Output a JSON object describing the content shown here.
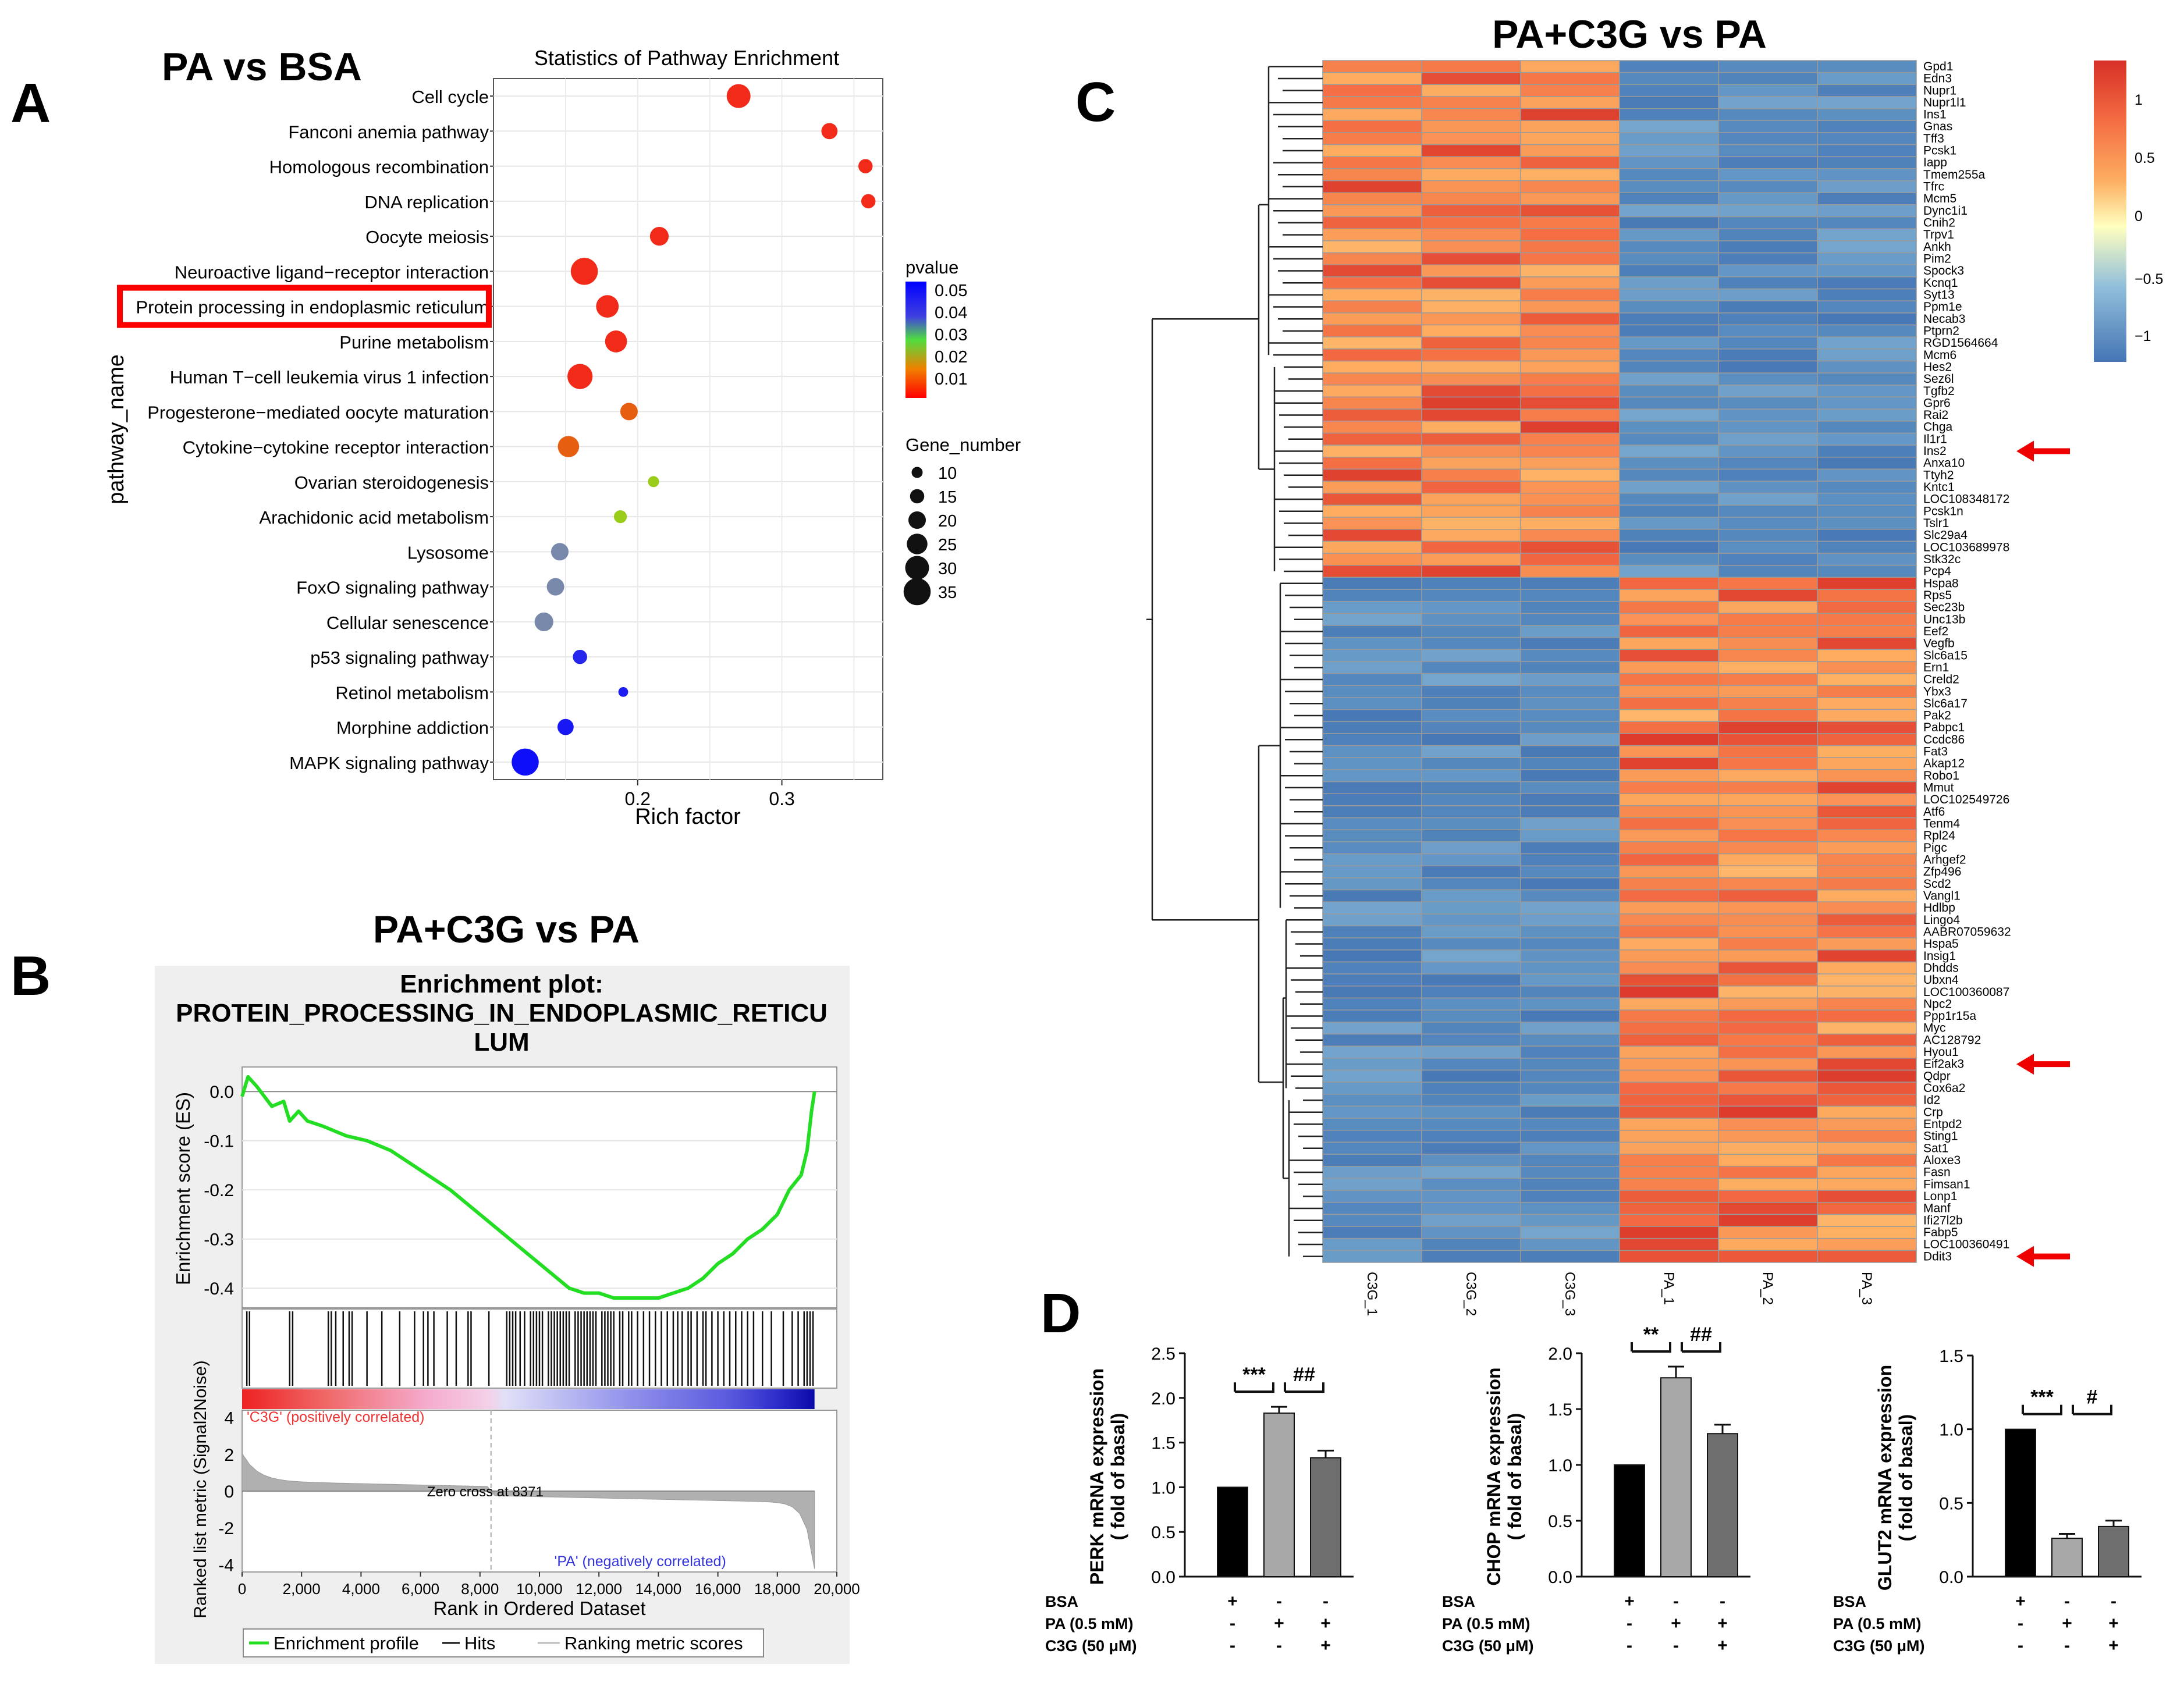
{
  "panels": {
    "A": {
      "letter": "A",
      "heading": "PA vs BSA",
      "chart_data": {
        "type": "scatter",
        "title": "Statistics of Pathway Enrichment",
        "xlabel": "Rich factor",
        "ylabel": "pathway_name",
        "xticks": [
          0.2,
          0.3
        ],
        "xlim": [
          0.1,
          0.37
        ],
        "highlight": "Protein processing in endoplasmic reticulum",
        "legend_color_title": "pvalue",
        "legend_color_ticks": [
          "0.05",
          "0.04",
          "0.03",
          "0.02",
          "0.01"
        ],
        "legend_size_title": "Gene_number",
        "legend_size_ticks": [
          10,
          15,
          20,
          25,
          30,
          35
        ],
        "points": [
          {
            "name": "Cell cycle",
            "rich": 0.27,
            "genes": 30,
            "p": 0.001
          },
          {
            "name": "Fanconi anemia pathway",
            "rich": 0.333,
            "genes": 18,
            "p": 0.001
          },
          {
            "name": "Homologous recombination",
            "rich": 0.358,
            "genes": 15,
            "p": 0.001
          },
          {
            "name": "DNA replication",
            "rich": 0.36,
            "genes": 15,
            "p": 0.001
          },
          {
            "name": "Oocyte meiosis",
            "rich": 0.215,
            "genes": 22,
            "p": 0.002
          },
          {
            "name": "Neuroactive ligand−receptor interaction",
            "rich": 0.163,
            "genes": 35,
            "p": 0.003
          },
          {
            "name": "Protein processing in endoplasmic reticulum",
            "rich": 0.179,
            "genes": 28,
            "p": 0.004
          },
          {
            "name": "Purine metabolism",
            "rich": 0.185,
            "genes": 27,
            "p": 0.004
          },
          {
            "name": "Human T−cell leukemia virus 1 infection",
            "rich": 0.16,
            "genes": 32,
            "p": 0.005
          },
          {
            "name": "Progesterone−mediated oocyte maturation",
            "rich": 0.194,
            "genes": 20,
            "p": 0.008
          },
          {
            "name": "Cytokine−cytokine receptor interaction",
            "rich": 0.152,
            "genes": 26,
            "p": 0.012
          },
          {
            "name": "Ovarian steroidogenesis",
            "rich": 0.211,
            "genes": 10,
            "p": 0.022
          },
          {
            "name": "Arachidonic acid metabolism",
            "rich": 0.188,
            "genes": 13,
            "p": 0.025
          },
          {
            "name": "Lysosome",
            "rich": 0.146,
            "genes": 20,
            "p": 0.035
          },
          {
            "name": "FoxO signaling pathway",
            "rich": 0.143,
            "genes": 20,
            "p": 0.035
          },
          {
            "name": "Cellular senescence",
            "rich": 0.135,
            "genes": 22,
            "p": 0.036
          },
          {
            "name": "p53 signaling pathway",
            "rich": 0.16,
            "genes": 15,
            "p": 0.042
          },
          {
            "name": "Retinol metabolism",
            "rich": 0.19,
            "genes": 8,
            "p": 0.044
          },
          {
            "name": "Morphine addiction",
            "rich": 0.15,
            "genes": 18,
            "p": 0.045
          },
          {
            "name": "MAPK signaling pathway",
            "rich": 0.122,
            "genes": 35,
            "p": 0.047
          }
        ]
      }
    },
    "B": {
      "letter": "B",
      "heading": "PA+C3G vs PA",
      "chart_data": {
        "type": "line",
        "title_line1": "Enrichment plot:",
        "title_line2": "PROTEIN_PROCESSING_IN_ENDOPLASMIC_RETICU",
        "title_line3": "LUM",
        "ylabel_top": "Enrichment score (ES)",
        "ylabel_bottom": "Ranked list metric (Signal2Noise)",
        "xlabel": "Rank in Ordered Dataset",
        "yticks_top": [
          "0.0",
          "-0.1",
          "-0.2",
          "-0.3",
          "-0.4"
        ],
        "ylim_top": [
          -0.44,
          0.05
        ],
        "yticks_bottom": [
          "4",
          "2",
          "0",
          "-2",
          "-4"
        ],
        "xticks": [
          "0",
          "2,000",
          "4,000",
          "6,000",
          "8,000",
          "10,000",
          "12,000",
          "14,000",
          "16,000",
          "18,000",
          "20,000"
        ],
        "xlim": [
          0,
          20000
        ],
        "es_x": [
          0,
          200,
          500,
          1000,
          1400,
          1600,
          1900,
          2200,
          2700,
          3500,
          4200,
          5000,
          6000,
          7000,
          8000,
          9000,
          10000,
          11000,
          11500,
          12000,
          12500,
          13000,
          13500,
          14000,
          14500,
          15000,
          15500,
          16000,
          16500,
          17000,
          17500,
          18000,
          18400,
          18800,
          19000,
          19150,
          19250
        ],
        "es_y": [
          -0.01,
          0.03,
          0.01,
          -0.03,
          -0.02,
          -0.06,
          -0.04,
          -0.06,
          -0.07,
          -0.09,
          -0.1,
          -0.12,
          -0.16,
          -0.2,
          -0.25,
          -0.3,
          -0.35,
          -0.4,
          -0.41,
          -0.41,
          -0.42,
          -0.42,
          -0.42,
          -0.42,
          -0.41,
          -0.4,
          -0.38,
          -0.35,
          -0.33,
          -0.3,
          -0.28,
          -0.25,
          -0.2,
          -0.17,
          -0.12,
          -0.04,
          0.0
        ],
        "zero_cross_label": "Zero cross at 8371",
        "zero_cross": 8371,
        "pos_label": "'C3G' (positively correlated)",
        "neg_label": "'PA' (negatively correlated)",
        "legend": [
          "Enrichment profile",
          "Hits",
          "Ranking metric scores"
        ],
        "hits": [
          160,
          250,
          1600,
          1700,
          2900,
          3000,
          3150,
          3400,
          3600,
          3700,
          4200,
          4700,
          5300,
          5800,
          6100,
          6250,
          6450,
          6900,
          7200,
          7600,
          7700,
          8300,
          8900,
          9000,
          9100,
          9200,
          9350,
          9500,
          9700,
          9800,
          9900,
          10000,
          10100,
          10300,
          10400,
          10500,
          10600,
          10700,
          10800,
          10900,
          11000,
          11200,
          11300,
          11400,
          11500,
          11600,
          11700,
          11800,
          11900,
          12100,
          12200,
          12300,
          12400,
          12500,
          12700,
          12800,
          13000,
          13100,
          13300,
          13500,
          13700,
          13900,
          14100,
          14300,
          14500,
          14650,
          14800,
          15000,
          15100,
          15300,
          15500,
          15600,
          15800,
          16000,
          16200,
          16400,
          16600,
          16800,
          17000,
          17200,
          17500,
          17800,
          18200,
          18500,
          18700,
          18900,
          19000,
          19100,
          19200
        ]
      }
    },
    "C": {
      "letter": "C",
      "heading": "PA+C3G vs PA",
      "chart_data": {
        "type": "heatmap",
        "columns": [
          "C3G_1",
          "C3G_2",
          "C3G_3",
          "PA_1",
          "PA_2",
          "PA_3"
        ],
        "legend_ticks": [
          "1",
          "0.5",
          "0",
          "−0.5",
          "−1"
        ],
        "arrow_genes": [
          "Ins2",
          "Eif2ak3",
          "Ddit3"
        ],
        "genes_up": [
          "Gpd1",
          "Edn3",
          "Nupr1",
          "Nupr1l1",
          "Ins1",
          "Gnas",
          "Tff3",
          "Pcsk1",
          "Iapp",
          "Tmem255a",
          "Tfrc",
          "Mcm5",
          "Dync1i1",
          "Cnih2",
          "Trpv1",
          "Ankh",
          "Pim2",
          "Spock3",
          "Kcnq1",
          "Syt13",
          "Ppm1e",
          "Necab3",
          "Ptprn2",
          "RGD1564664",
          "Mcm6",
          "Hes2",
          "Sez6l",
          "Tgfb2",
          "Gpr6",
          "Rai2",
          "Chga",
          "Il1r1",
          "Ins2",
          "Anxa10",
          "Ttyh2",
          "Kntc1",
          "LOC108348172",
          "Pcsk1n",
          "Tslr1",
          "Slc29a4",
          "LOC103689978",
          "Stk32c",
          "Pcp4"
        ],
        "genes_down": [
          "Hspa8",
          "Rps5",
          "Sec23b",
          "Unc13b",
          "Eef2",
          "Vegfb",
          "Slc6a15",
          "Ern1",
          "Creld2",
          "Ybx3",
          "Slc6a17",
          "Pak2",
          "Pabpc1",
          "Ccdc86",
          "Fat3",
          "Akap12",
          "Robo1",
          "Mmut",
          "LOC102549726",
          "Atf6",
          "Tenm4",
          "Rpl24",
          "Pigc",
          "Arhgef2",
          "Zfp496",
          "Scd2",
          "Vangl1",
          "Hdlbp",
          "Lingo4",
          "AABR07059632",
          "Hspa5",
          "Insig1",
          "Dhdds",
          "Ubxn4",
          "LOC100360087",
          "Npc2",
          "Ppp1r15a",
          "Myc",
          "AC128792",
          "Hyou1",
          "Eif2ak3",
          "Qdpr",
          "Cox6a2",
          "Id2",
          "Crp",
          "Entpd2",
          "Sting1",
          "Sat1",
          "Aloxe3",
          "Fasn",
          "Fimsan1",
          "Lonp1",
          "Manf",
          "Ifi27l2b",
          "Fabp5",
          "LOC100360491",
          "Ddit3"
        ]
      }
    },
    "D": {
      "letter": "D",
      "chart_data": [
        {
          "type": "bar",
          "ylabel": "PERK mRNA expression",
          "ylabel2": "( fold of basal)",
          "yticks": [
            "0.0",
            "0.5",
            "1.0",
            "1.5",
            "2.0",
            "2.5"
          ],
          "ylim": [
            0,
            2.5
          ],
          "values": [
            1.0,
            1.83,
            1.33
          ],
          "errors": [
            0,
            0.07,
            0.08
          ],
          "sig": [
            "***",
            "##"
          ]
        },
        {
          "type": "bar",
          "ylabel": "CHOP mRNA expression",
          "ylabel2": "( fold of basal)",
          "yticks": [
            "0.0",
            "0.5",
            "1.0",
            "1.5",
            "2.0"
          ],
          "ylim": [
            0,
            2.0
          ],
          "values": [
            1.0,
            1.78,
            1.28
          ],
          "errors": [
            0,
            0.1,
            0.08
          ],
          "sig": [
            "**",
            "##"
          ]
        },
        {
          "type": "bar",
          "ylabel": "GLUT2 mRNA expression",
          "ylabel2": "( fold of basal)",
          "yticks": [
            "0.0",
            "0.5",
            "1.0",
            "1.5"
          ],
          "ylim": [
            0,
            1.5
          ],
          "values": [
            1.0,
            0.26,
            0.34
          ],
          "errors": [
            0,
            0.03,
            0.04
          ],
          "sig": [
            "***",
            "#"
          ]
        }
      ],
      "treat_labels": [
        "BSA",
        "PA (0.5 mM)",
        "C3G (50 μM)"
      ],
      "treat_signs": [
        [
          "+",
          "-",
          "-"
        ],
        [
          "-",
          "+",
          "+"
        ],
        [
          "-",
          "-",
          "+"
        ]
      ]
    }
  }
}
